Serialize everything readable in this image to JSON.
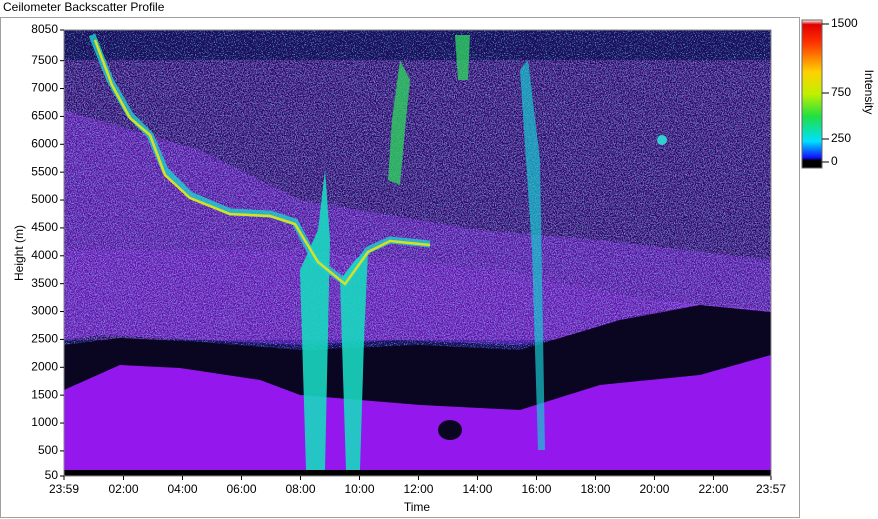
{
  "chart_data": {
    "type": "heatmap",
    "title": "Ceilometer Backscatter Profile",
    "x_label": "Time",
    "y_label": "Height (m)",
    "xlim": [
      0,
      1438
    ],
    "xticks": [
      {
        "value": 0,
        "label": "23:59"
      },
      {
        "value": 121,
        "label": "02:00"
      },
      {
        "value": 241,
        "label": "04:00"
      },
      {
        "value": 361,
        "label": "06:00"
      },
      {
        "value": 481,
        "label": "08:00"
      },
      {
        "value": 601,
        "label": "10:00"
      },
      {
        "value": 721,
        "label": "12:00"
      },
      {
        "value": 841,
        "label": "14:00"
      },
      {
        "value": 961,
        "label": "16:00"
      },
      {
        "value": 1081,
        "label": "18:00"
      },
      {
        "value": 1201,
        "label": "20:00"
      },
      {
        "value": 1321,
        "label": "22:00"
      },
      {
        "value": 1438,
        "label": "23:57"
      }
    ],
    "ylim": [
      50,
      8050
    ],
    "yticks": [
      50,
      500,
      1000,
      1500,
      2000,
      2500,
      3000,
      3500,
      4000,
      4500,
      5000,
      5500,
      6000,
      6500,
      7000,
      7500,
      8050
    ],
    "colorbar": {
      "label": "Intensity",
      "lim": [
        0,
        1500
      ],
      "ticks": [
        0,
        250,
        750,
        1500
      ]
    }
  }
}
